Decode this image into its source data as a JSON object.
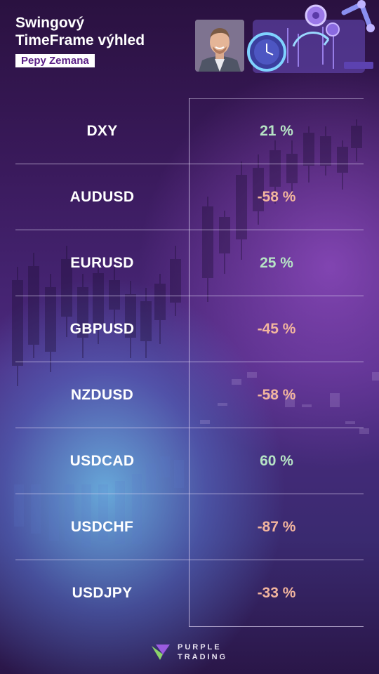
{
  "header": {
    "title_line1": "Swingový",
    "title_line2": "TimeFrame výhled",
    "author": "Pepy Zemana"
  },
  "rows": [
    {
      "symbol": "DXY",
      "value": "21 %",
      "sign": "pos"
    },
    {
      "symbol": "AUDUSD",
      "value": "-58 %",
      "sign": "neg"
    },
    {
      "symbol": "EURUSD",
      "value": "25 %",
      "sign": "pos"
    },
    {
      "symbol": "GBPUSD",
      "value": "-45 %",
      "sign": "neg"
    },
    {
      "symbol": "NZDUSD",
      "value": "-58 %",
      "sign": "neg"
    },
    {
      "symbol": "USDCAD",
      "value": "60 %",
      "sign": "pos"
    },
    {
      "symbol": "USDCHF",
      "value": "-87 %",
      "sign": "neg"
    },
    {
      "symbol": "USDJPY",
      "value": "-33 %",
      "sign": "neg"
    }
  ],
  "footer": {
    "brand_line1": "PURPLE",
    "brand_line2": "TRADING"
  },
  "colors": {
    "positive": "#b6e3c5",
    "negative": "#f2b59e",
    "accent": "#5a1f86"
  },
  "icons": [
    "portrait-photo",
    "clock-gear-illustration",
    "purple-trading-logo-icon"
  ]
}
